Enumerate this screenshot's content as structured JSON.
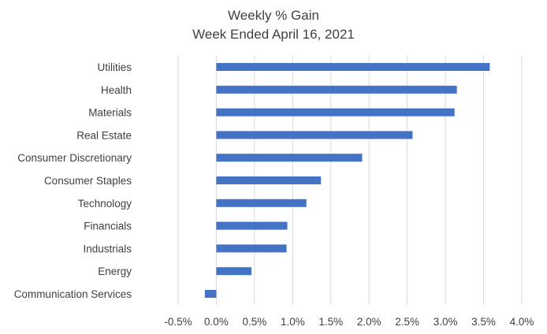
{
  "chart_data": {
    "type": "bar",
    "orientation": "horizontal",
    "title": "Weekly % Gain",
    "subtitle": "Week Ended April 16, 2021",
    "categories": [
      "Utilities",
      "Health",
      "Materials",
      "Real Estate",
      "Consumer Discretionary",
      "Consumer Staples",
      "Technology",
      "Financials",
      "Industrials",
      "Energy",
      "Communication Services"
    ],
    "values": [
      3.58,
      3.15,
      3.12,
      2.57,
      1.91,
      1.37,
      1.18,
      0.93,
      0.92,
      0.46,
      -0.15
    ],
    "value_unit": "%",
    "xlim": [
      -0.5,
      4.0
    ],
    "xticks": [
      -0.5,
      0.0,
      0.5,
      1.0,
      1.5,
      2.0,
      2.5,
      3.0,
      3.5,
      4.0
    ],
    "xtick_labels": [
      "-0.5%",
      "0.0%",
      "0.5%",
      "1.0%",
      "1.5%",
      "2.0%",
      "2.5%",
      "3.0%",
      "3.5%",
      "4.0%"
    ],
    "grid": "vertical",
    "legend": "none",
    "bar_color": "#4472c4",
    "grid_color": "#d9d9d9",
    "text_color": "#404040"
  }
}
